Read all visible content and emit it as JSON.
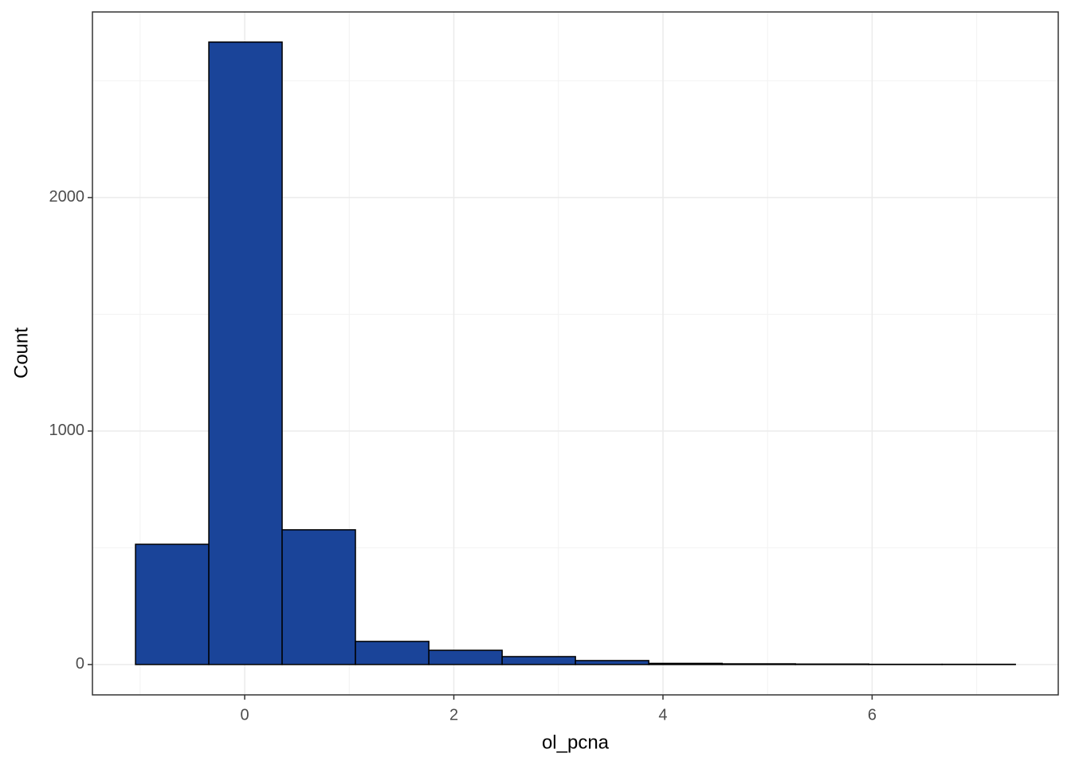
{
  "chart_data": {
    "type": "histogram",
    "x_label": "ol_pcna",
    "y_label": "Count",
    "bins": [
      -1.044,
      -0.343,
      0.358,
      1.059,
      1.761,
      2.462,
      3.163,
      3.864,
      4.566,
      5.267,
      5.968,
      6.669,
      7.37
    ],
    "values": [
      515,
      2666,
      577,
      99,
      61,
      34,
      17,
      5,
      3,
      2,
      1,
      1
    ],
    "color": "#1a4499",
    "edge_color": "#000000",
    "xlim": [
      -1.456,
      7.78
    ],
    "ylim": [
      -130,
      2795
    ],
    "xticks": [
      0,
      2,
      4,
      6
    ],
    "yticks": [
      0,
      1000,
      2000
    ],
    "x_minor_ticks": [
      -1,
      1,
      3,
      5,
      7
    ],
    "y_minor_ticks": [
      500,
      1500,
      2500
    ],
    "grid": true
  }
}
